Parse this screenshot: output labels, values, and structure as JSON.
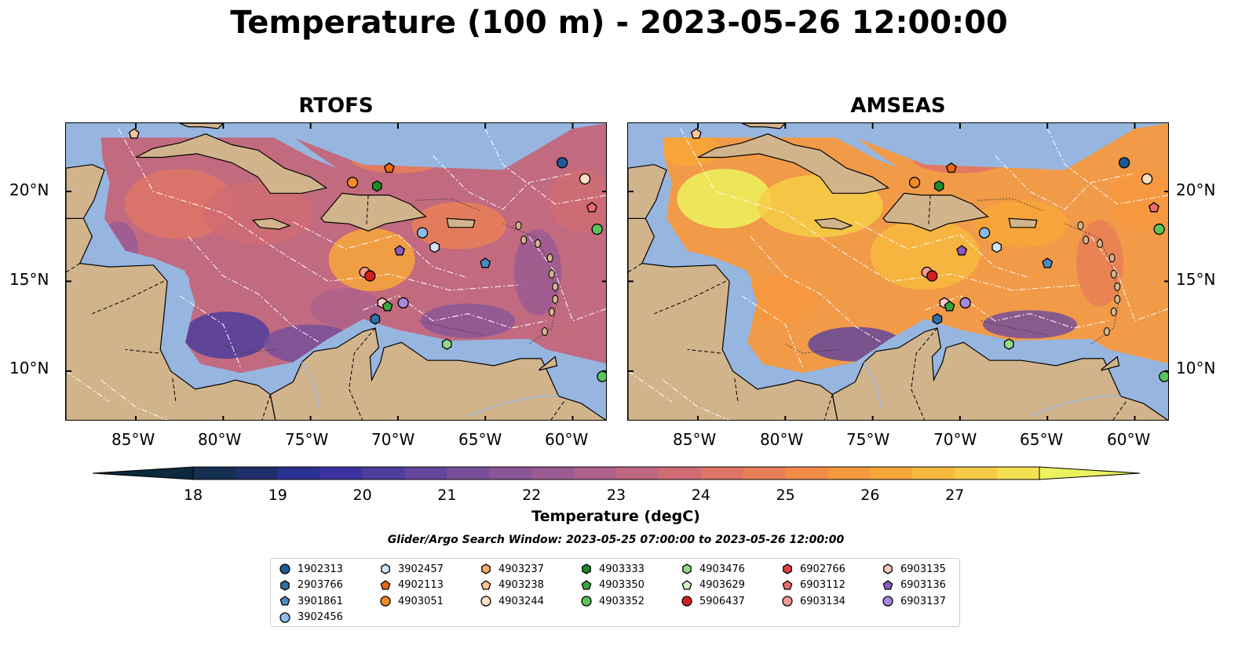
{
  "title": "Temperature (100 m) - 2023-05-26 12:00:00",
  "panels": [
    {
      "id": "rtofs",
      "title": "RTOFS"
    },
    {
      "id": "amseas",
      "title": "AMSEAS"
    }
  ],
  "axes": {
    "x_ticks": [
      "85°W",
      "80°W",
      "75°W",
      "70°W",
      "65°W",
      "60°W"
    ],
    "y_ticks": [
      "20°N",
      "15°N",
      "10°N"
    ]
  },
  "colorbar": {
    "label": "Temperature (degC)",
    "ticks": [
      "18",
      "19",
      "20",
      "21",
      "22",
      "23",
      "24",
      "25",
      "26",
      "27"
    ],
    "colors": [
      "#0b2a3d",
      "#142f4f",
      "#1f2f6a",
      "#2a3190",
      "#3c339e",
      "#4f3d9c",
      "#63469b",
      "#774f9a",
      "#8a5697",
      "#9b5b92",
      "#ad6089",
      "#bf6680",
      "#d06c73",
      "#de7466",
      "#e97f57",
      "#f28b47",
      "#f6983e",
      "#f8a739",
      "#f8b83e",
      "#f6cc46",
      "#f3e050",
      "#ecf25e"
    ]
  },
  "search_window": "Glider/Argo Search Window: 2023-05-25 07:00:00 to 2023-05-26 12:00:00",
  "legend": [
    {
      "id": "1902313",
      "marker": "circle",
      "color": "#1f5a96"
    },
    {
      "id": "2903766",
      "marker": "hexagon",
      "color": "#2f6fa8"
    },
    {
      "id": "3901861",
      "marker": "pentagon",
      "color": "#4a8cc4"
    },
    {
      "id": "3902456",
      "marker": "circle",
      "color": "#8cbcec"
    },
    {
      "id": "3902457",
      "marker": "hexagon",
      "color": "#cfe6f8"
    },
    {
      "id": "4902113",
      "marker": "pentagon",
      "color": "#e86a10"
    },
    {
      "id": "4903051",
      "marker": "circle",
      "color": "#f28c2a"
    },
    {
      "id": "4903237",
      "marker": "hexagon",
      "color": "#f7aa60"
    },
    {
      "id": "4903238",
      "marker": "pentagon",
      "color": "#fbc694"
    },
    {
      "id": "4903244",
      "marker": "circle",
      "color": "#fde0c4"
    },
    {
      "id": "4903333",
      "marker": "hexagon",
      "color": "#1f8a2a"
    },
    {
      "id": "4903350",
      "marker": "pentagon",
      "color": "#3aa53c"
    },
    {
      "id": "4903352",
      "marker": "circle",
      "color": "#5cc35c"
    },
    {
      "id": "4903476",
      "marker": "hexagon",
      "color": "#92d98a"
    },
    {
      "id": "4903629",
      "marker": "pentagon",
      "color": "#d0f2c4"
    },
    {
      "id": "5906437",
      "marker": "circle",
      "color": "#d41f1f"
    },
    {
      "id": "6902766",
      "marker": "hexagon",
      "color": "#e04040"
    },
    {
      "id": "6903112",
      "marker": "pentagon",
      "color": "#ee6a6a"
    },
    {
      "id": "6903134",
      "marker": "circle",
      "color": "#f49a90"
    },
    {
      "id": "6903135",
      "marker": "hexagon",
      "color": "#f8c9c2"
    },
    {
      "id": "6903136",
      "marker": "pentagon",
      "color": "#8a5cc0"
    },
    {
      "id": "6903137",
      "marker": "circle",
      "color": "#a98ad8"
    }
  ],
  "markers_on_map": [
    {
      "id": "4903238",
      "lon": -85.1,
      "lat": 23.2
    },
    {
      "id": "1902313",
      "lon": -60.6,
      "lat": 21.6
    },
    {
      "id": "4903244",
      "lon": -59.3,
      "lat": 20.7
    },
    {
      "id": "6903112",
      "lon": -58.9,
      "lat": 19.1
    },
    {
      "id": "4903352",
      "lon": -58.6,
      "lat": 17.9
    },
    {
      "id": "4902113",
      "lon": -70.5,
      "lat": 21.3
    },
    {
      "id": "4903051",
      "lon": -72.6,
      "lat": 20.5
    },
    {
      "id": "4903333",
      "lon": -71.2,
      "lat": 20.3
    },
    {
      "id": "3902456",
      "lon": -68.6,
      "lat": 17.7
    },
    {
      "id": "3902457",
      "lon": -67.9,
      "lat": 16.9
    },
    {
      "id": "6903136",
      "lon": -69.9,
      "lat": 16.7
    },
    {
      "id": "3901861",
      "lon": -65.0,
      "lat": 16.0
    },
    {
      "id": "6903134",
      "lon": -71.9,
      "lat": 15.5
    },
    {
      "id": "5906437",
      "lon": -71.6,
      "lat": 15.3
    },
    {
      "id": "6903135",
      "lon": -70.9,
      "lat": 13.8
    },
    {
      "id": "4903350",
      "lon": -70.6,
      "lat": 13.6
    },
    {
      "id": "6903137",
      "lon": -69.7,
      "lat": 13.8
    },
    {
      "id": "2903766",
      "lon": -71.3,
      "lat": 12.9
    },
    {
      "id": "4903476",
      "lon": -67.2,
      "lat": 11.5
    },
    {
      "id": "4903352",
      "lon": -58.3,
      "lat": 9.7
    }
  ]
}
